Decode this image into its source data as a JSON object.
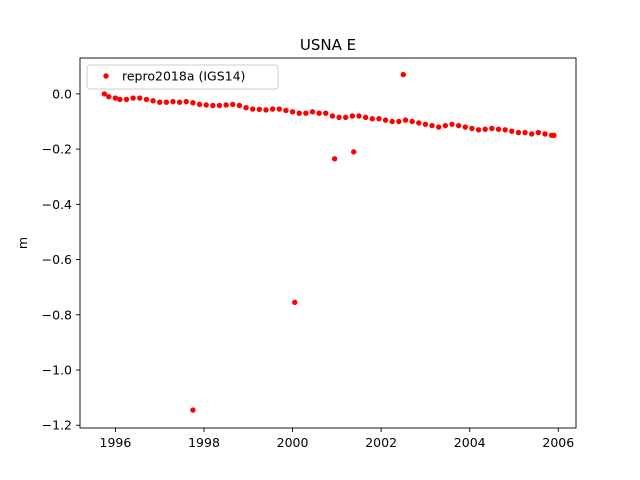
{
  "chart_data": {
    "type": "scatter",
    "title": "USNA E",
    "xlabel": "",
    "ylabel": "m",
    "xlim": [
      1995.2,
      2006.4
    ],
    "ylim": [
      -1.21,
      0.13
    ],
    "xticks": [
      1996,
      1998,
      2000,
      2002,
      2004,
      2006
    ],
    "xtick_labels": [
      "1996",
      "1998",
      "2000",
      "2002",
      "2004",
      "2006"
    ],
    "yticks": [
      0.0,
      -0.2,
      -0.4,
      -0.6,
      -0.8,
      -1.0,
      -1.2
    ],
    "ytick_labels": [
      "0.0",
      "−0.2",
      "−0.4",
      "−0.6",
      "−0.8",
      "−1.0",
      "−1.2"
    ],
    "grid": false,
    "legend_position": "top-left",
    "series": [
      {
        "name": "repro2018a (IGS14)",
        "color": "#ff0000",
        "marker": "point",
        "x": [
          1995.75,
          1995.85,
          1996.0,
          1996.1,
          1996.25,
          1996.4,
          1996.55,
          1996.7,
          1996.85,
          1997.0,
          1997.15,
          1997.3,
          1997.45,
          1997.6,
          1997.75,
          1997.9,
          1998.05,
          1998.2,
          1998.35,
          1998.5,
          1998.65,
          1998.8,
          1998.95,
          1999.1,
          1999.25,
          1999.4,
          1999.55,
          1999.7,
          1999.85,
          2000.0,
          2000.15,
          2000.3,
          2000.45,
          2000.6,
          2000.75,
          2000.9,
          2001.05,
          2001.2,
          2001.35,
          2001.5,
          2001.65,
          2001.8,
          2001.95,
          2002.1,
          2002.25,
          2002.4,
          2002.55,
          2002.7,
          2002.85,
          2003.0,
          2003.15,
          2003.3,
          2003.45,
          2003.6,
          2003.75,
          2003.9,
          2004.05,
          2004.2,
          2004.35,
          2004.5,
          2004.65,
          2004.8,
          2004.95,
          2005.1,
          2005.25,
          2005.4,
          2005.55,
          2005.7,
          2005.85,
          2005.9,
          1997.75,
          2000.05,
          2000.95,
          2001.38,
          2002.5
        ],
        "y": [
          0.0,
          -0.01,
          -0.015,
          -0.02,
          -0.02,
          -0.015,
          -0.015,
          -0.02,
          -0.025,
          -0.03,
          -0.03,
          -0.028,
          -0.03,
          -0.028,
          -0.032,
          -0.038,
          -0.04,
          -0.042,
          -0.042,
          -0.04,
          -0.038,
          -0.042,
          -0.05,
          -0.055,
          -0.056,
          -0.058,
          -0.055,
          -0.055,
          -0.06,
          -0.065,
          -0.07,
          -0.07,
          -0.065,
          -0.07,
          -0.07,
          -0.08,
          -0.085,
          -0.085,
          -0.08,
          -0.08,
          -0.085,
          -0.09,
          -0.09,
          -0.095,
          -0.1,
          -0.1,
          -0.095,
          -0.1,
          -0.105,
          -0.11,
          -0.115,
          -0.12,
          -0.115,
          -0.11,
          -0.115,
          -0.12,
          -0.125,
          -0.13,
          -0.128,
          -0.125,
          -0.128,
          -0.13,
          -0.135,
          -0.14,
          -0.14,
          -0.145,
          -0.14,
          -0.145,
          -0.15,
          -0.15,
          -1.145,
          -0.755,
          -0.235,
          -0.21,
          0.07
        ]
      }
    ]
  }
}
